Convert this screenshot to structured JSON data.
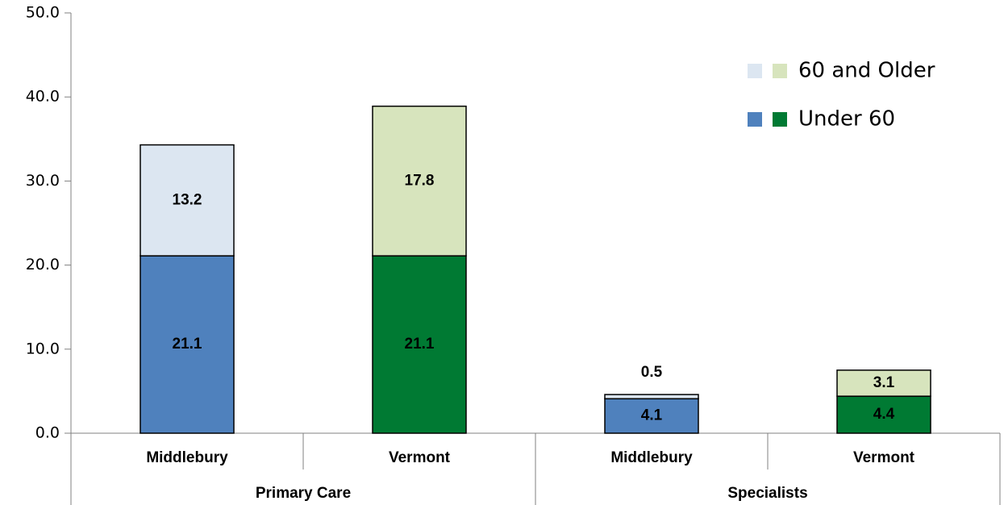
{
  "chart_data": {
    "type": "stacked_bar",
    "categories": [
      "Middlebury",
      "Vermont",
      "Middlebury",
      "Vermont"
    ],
    "groups": [
      {
        "name": "Primary Care",
        "span": [
          0,
          1
        ]
      },
      {
        "name": "Specialists",
        "span": [
          2,
          3
        ]
      }
    ],
    "series": [
      {
        "name": "Under 60",
        "colors": [
          "#4f81bd",
          "#007a33",
          "#4f81bd",
          "#007a33"
        ],
        "values": [
          21.1,
          21.1,
          4.1,
          4.4
        ]
      },
      {
        "name": "60 and Older",
        "colors": [
          "#dce6f1",
          "#d7e4bd",
          "#dce6f1",
          "#d7e4bd"
        ],
        "values": [
          13.2,
          17.8,
          0.5,
          3.1
        ]
      }
    ],
    "ylim": [
      0,
      50
    ],
    "yticks": [
      {
        "value": 0,
        "label": "0.0"
      },
      {
        "value": 10,
        "label": "10.0"
      },
      {
        "value": 20,
        "label": "20.0"
      },
      {
        "value": 30,
        "label": "30.0"
      },
      {
        "value": 40,
        "label": "40.0"
      },
      {
        "value": 50,
        "label": "50.0"
      }
    ],
    "legend": "top-right"
  }
}
